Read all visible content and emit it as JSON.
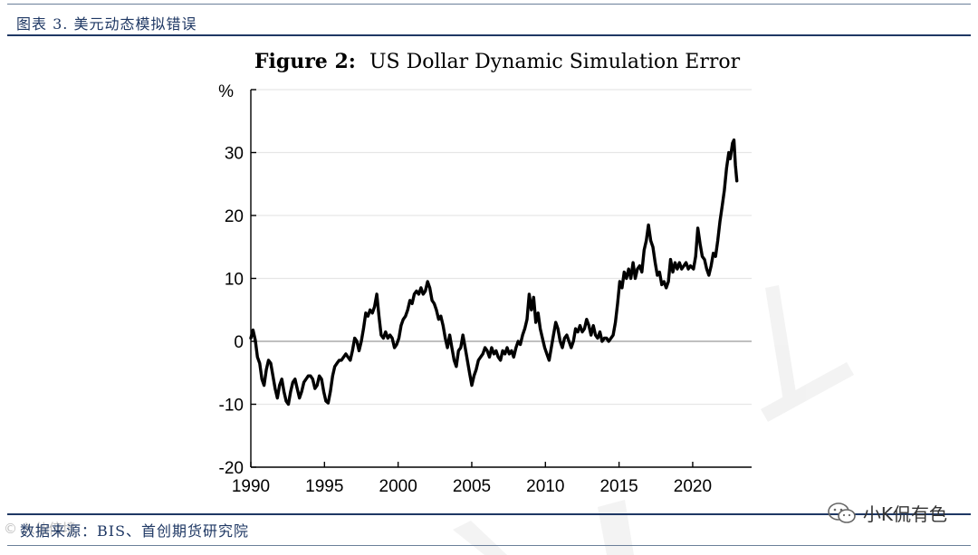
{
  "header": {
    "title": "图表 3. 美元动态模拟错误"
  },
  "footer": {
    "source_label": "数据来源：",
    "source_text": "BIS、首创期货研究院"
  },
  "watermarks": {
    "right_text": "小K侃有色",
    "left_text": "© 入仙倍境"
  },
  "colors": {
    "header_text": "#1f3864",
    "rule": "#1f3864",
    "series": "#000000",
    "grid": "#e6e6e6",
    "zero_line": "#9a9a9a"
  },
  "chart_data": {
    "type": "line",
    "title_prefix": "Figure 2:",
    "title": "US Dollar Dynamic Simulation Error",
    "ylabel": "%",
    "xlabel": "",
    "xlim": [
      1990,
      2024
    ],
    "ylim": [
      -20,
      40
    ],
    "xticks": [
      1990,
      1995,
      2000,
      2005,
      2010,
      2015,
      2020
    ],
    "yticks": [
      -20,
      -10,
      0,
      10,
      20,
      30
    ],
    "grid": "horizontal",
    "reference_line": 0,
    "series": [
      {
        "name": "",
        "points": [
          [
            1990.0,
            0.5
          ],
          [
            1990.15,
            1.8
          ],
          [
            1990.3,
            0.2
          ],
          [
            1990.45,
            -2.5
          ],
          [
            1990.6,
            -3.5
          ],
          [
            1990.75,
            -6.0
          ],
          [
            1990.9,
            -7.0
          ],
          [
            1991.05,
            -4.5
          ],
          [
            1991.2,
            -3.0
          ],
          [
            1991.35,
            -3.5
          ],
          [
            1991.5,
            -5.5
          ],
          [
            1991.65,
            -7.5
          ],
          [
            1991.8,
            -9.0
          ],
          [
            1991.95,
            -7.0
          ],
          [
            1992.1,
            -6.0
          ],
          [
            1992.25,
            -8.0
          ],
          [
            1992.4,
            -9.5
          ],
          [
            1992.55,
            -10.0
          ],
          [
            1992.7,
            -8.0
          ],
          [
            1992.85,
            -6.5
          ],
          [
            1993.0,
            -6.0
          ],
          [
            1993.15,
            -7.5
          ],
          [
            1993.3,
            -9.0
          ],
          [
            1993.45,
            -8.0
          ],
          [
            1993.6,
            -6.5
          ],
          [
            1993.75,
            -6.0
          ],
          [
            1993.9,
            -5.5
          ],
          [
            1994.05,
            -5.5
          ],
          [
            1994.2,
            -6.0
          ],
          [
            1994.35,
            -7.5
          ],
          [
            1994.5,
            -7.0
          ],
          [
            1994.65,
            -5.5
          ],
          [
            1994.8,
            -6.0
          ],
          [
            1994.95,
            -8.0
          ],
          [
            1995.1,
            -9.5
          ],
          [
            1995.25,
            -9.8
          ],
          [
            1995.4,
            -8.0
          ],
          [
            1995.55,
            -5.5
          ],
          [
            1995.7,
            -4.0
          ],
          [
            1995.85,
            -3.5
          ],
          [
            1996.0,
            -3.0
          ],
          [
            1996.15,
            -3.0
          ],
          [
            1996.3,
            -2.5
          ],
          [
            1996.45,
            -2.0
          ],
          [
            1996.6,
            -2.5
          ],
          [
            1996.75,
            -3.0
          ],
          [
            1996.9,
            -1.5
          ],
          [
            1997.05,
            0.5
          ],
          [
            1997.2,
            0.0
          ],
          [
            1997.35,
            -1.5
          ],
          [
            1997.5,
            0.0
          ],
          [
            1997.65,
            2.0
          ],
          [
            1997.8,
            4.5
          ],
          [
            1997.95,
            4.0
          ],
          [
            1998.1,
            5.0
          ],
          [
            1998.25,
            4.5
          ],
          [
            1998.4,
            5.5
          ],
          [
            1998.55,
            7.5
          ],
          [
            1998.7,
            4.0
          ],
          [
            1998.85,
            1.0
          ],
          [
            1999.0,
            0.5
          ],
          [
            1999.15,
            1.5
          ],
          [
            1999.3,
            0.5
          ],
          [
            1999.45,
            1.0
          ],
          [
            1999.6,
            0.5
          ],
          [
            1999.75,
            -1.0
          ],
          [
            1999.9,
            -0.5
          ],
          [
            2000.05,
            0.5
          ],
          [
            2000.2,
            2.5
          ],
          [
            2000.35,
            3.5
          ],
          [
            2000.5,
            4.0
          ],
          [
            2000.65,
            5.0
          ],
          [
            2000.8,
            6.5
          ],
          [
            2000.95,
            6.0
          ],
          [
            2001.1,
            7.5
          ],
          [
            2001.25,
            8.0
          ],
          [
            2001.4,
            7.5
          ],
          [
            2001.55,
            8.5
          ],
          [
            2001.7,
            7.5
          ],
          [
            2001.85,
            8.0
          ],
          [
            2002.0,
            9.5
          ],
          [
            2002.15,
            8.5
          ],
          [
            2002.3,
            6.5
          ],
          [
            2002.45,
            6.0
          ],
          [
            2002.6,
            5.0
          ],
          [
            2002.75,
            3.5
          ],
          [
            2002.9,
            4.0
          ],
          [
            2003.05,
            2.5
          ],
          [
            2003.2,
            0.5
          ],
          [
            2003.35,
            -1.0
          ],
          [
            2003.5,
            1.0
          ],
          [
            2003.65,
            -1.0
          ],
          [
            2003.8,
            -3.0
          ],
          [
            2003.95,
            -4.0
          ],
          [
            2004.1,
            -1.5
          ],
          [
            2004.25,
            -1.0
          ],
          [
            2004.4,
            1.0
          ],
          [
            2004.55,
            -1.0
          ],
          [
            2004.7,
            -3.0
          ],
          [
            2004.85,
            -5.0
          ],
          [
            2005.0,
            -7.0
          ],
          [
            2005.15,
            -5.5
          ],
          [
            2005.3,
            -4.5
          ],
          [
            2005.45,
            -3.0
          ],
          [
            2005.6,
            -2.5
          ],
          [
            2005.75,
            -2.0
          ],
          [
            2005.9,
            -1.0
          ],
          [
            2006.05,
            -1.5
          ],
          [
            2006.2,
            -2.5
          ],
          [
            2006.35,
            -1.0
          ],
          [
            2006.5,
            -2.0
          ],
          [
            2006.65,
            -1.5
          ],
          [
            2006.8,
            -2.5
          ],
          [
            2006.95,
            -3.0
          ],
          [
            2007.1,
            -1.5
          ],
          [
            2007.25,
            -2.0
          ],
          [
            2007.4,
            -1.0
          ],
          [
            2007.55,
            -2.0
          ],
          [
            2007.7,
            -1.5
          ],
          [
            2007.85,
            -2.5
          ],
          [
            2008.0,
            -1.0
          ],
          [
            2008.15,
            0.0
          ],
          [
            2008.3,
            -0.5
          ],
          [
            2008.45,
            1.0
          ],
          [
            2008.6,
            2.0
          ],
          [
            2008.75,
            3.5
          ],
          [
            2008.9,
            7.5
          ],
          [
            2009.05,
            5.0
          ],
          [
            2009.2,
            7.0
          ],
          [
            2009.35,
            3.0
          ],
          [
            2009.5,
            4.5
          ],
          [
            2009.65,
            2.0
          ],
          [
            2009.8,
            0.5
          ],
          [
            2009.95,
            -1.0
          ],
          [
            2010.1,
            -2.0
          ],
          [
            2010.25,
            -3.0
          ],
          [
            2010.4,
            -1.0
          ],
          [
            2010.55,
            1.0
          ],
          [
            2010.7,
            3.0
          ],
          [
            2010.85,
            2.0
          ],
          [
            2011.0,
            0.0
          ],
          [
            2011.15,
            -1.0
          ],
          [
            2011.3,
            0.5
          ],
          [
            2011.45,
            1.0
          ],
          [
            2011.6,
            0.0
          ],
          [
            2011.75,
            -1.0
          ],
          [
            2011.9,
            0.0
          ],
          [
            2012.05,
            2.0
          ],
          [
            2012.2,
            1.5
          ],
          [
            2012.35,
            2.5
          ],
          [
            2012.5,
            1.5
          ],
          [
            2012.65,
            2.0
          ],
          [
            2012.8,
            3.5
          ],
          [
            2012.95,
            2.5
          ],
          [
            2013.1,
            1.0
          ],
          [
            2013.25,
            2.5
          ],
          [
            2013.4,
            1.0
          ],
          [
            2013.55,
            0.5
          ],
          [
            2013.7,
            1.5
          ],
          [
            2013.85,
            0.0
          ],
          [
            2014.0,
            0.5
          ],
          [
            2014.15,
            0.5
          ],
          [
            2014.3,
            0.0
          ],
          [
            2014.45,
            0.5
          ],
          [
            2014.6,
            1.0
          ],
          [
            2014.75,
            3.0
          ],
          [
            2014.9,
            6.0
          ],
          [
            2015.05,
            9.5
          ],
          [
            2015.2,
            8.5
          ],
          [
            2015.35,
            11.0
          ],
          [
            2015.5,
            10.0
          ],
          [
            2015.65,
            11.5
          ],
          [
            2015.8,
            10.0
          ],
          [
            2015.95,
            12.5
          ],
          [
            2016.1,
            10.0
          ],
          [
            2016.25,
            11.5
          ],
          [
            2016.4,
            12.0
          ],
          [
            2016.55,
            11.0
          ],
          [
            2016.7,
            14.5
          ],
          [
            2016.85,
            16.0
          ],
          [
            2017.0,
            18.5
          ],
          [
            2017.15,
            16.0
          ],
          [
            2017.3,
            15.0
          ],
          [
            2017.45,
            12.5
          ],
          [
            2017.6,
            10.5
          ],
          [
            2017.75,
            11.0
          ],
          [
            2017.9,
            9.0
          ],
          [
            2018.05,
            9.5
          ],
          [
            2018.2,
            8.5
          ],
          [
            2018.35,
            9.5
          ],
          [
            2018.5,
            13.0
          ],
          [
            2018.65,
            11.0
          ],
          [
            2018.8,
            12.5
          ],
          [
            2018.95,
            11.5
          ],
          [
            2019.1,
            12.5
          ],
          [
            2019.25,
            11.5
          ],
          [
            2019.4,
            12.0
          ],
          [
            2019.55,
            12.5
          ],
          [
            2019.7,
            11.5
          ],
          [
            2019.85,
            12.0
          ],
          [
            2020.05,
            11.5
          ],
          [
            2020.2,
            13.5
          ],
          [
            2020.35,
            18.0
          ],
          [
            2020.5,
            15.5
          ],
          [
            2020.65,
            13.5
          ],
          [
            2020.8,
            13.0
          ],
          [
            2020.95,
            11.5
          ],
          [
            2021.1,
            10.5
          ],
          [
            2021.25,
            12.0
          ],
          [
            2021.4,
            14.0
          ],
          [
            2021.55,
            13.5
          ],
          [
            2021.7,
            16.0
          ],
          [
            2021.85,
            19.0
          ],
          [
            2022.0,
            21.5
          ],
          [
            2022.15,
            24.0
          ],
          [
            2022.3,
            27.5
          ],
          [
            2022.45,
            30.0
          ],
          [
            2022.55,
            29.0
          ],
          [
            2022.7,
            31.5
          ],
          [
            2022.8,
            32.0
          ],
          [
            2022.9,
            28.0
          ],
          [
            2023.0,
            25.5
          ]
        ]
      }
    ]
  }
}
